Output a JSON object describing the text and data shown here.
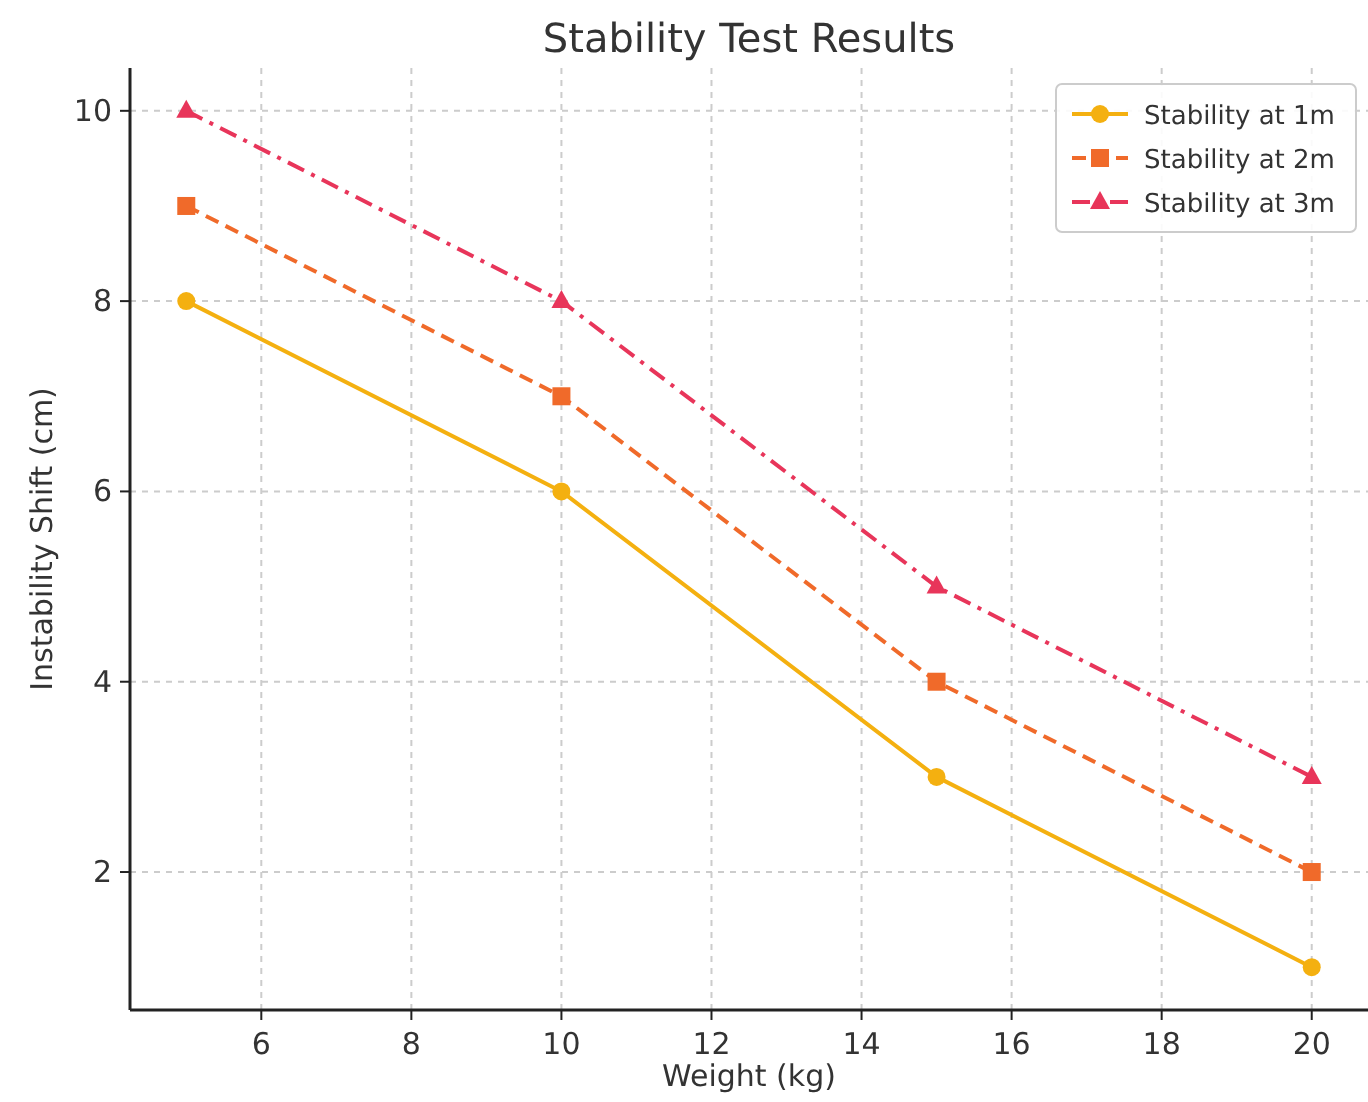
{
  "chart_data": {
    "type": "line",
    "title": "Stability Test Results",
    "xlabel": "Weight (kg)",
    "ylabel": "Instability Shift (cm)",
    "x": [
      5,
      10,
      15,
      20
    ],
    "series": [
      {
        "name": "Stability at 1m",
        "color": "#f4b010",
        "values": [
          8,
          6,
          3,
          1
        ],
        "marker": "circle",
        "line_style": "solid"
      },
      {
        "name": "Stability at 2m",
        "color": "#f06a2a",
        "values": [
          9,
          7,
          4,
          2
        ],
        "marker": "square",
        "line_style": "dashed"
      },
      {
        "name": "Stability at 3m",
        "color": "#e8355a",
        "values": [
          10,
          8,
          5,
          3
        ],
        "marker": "triangle",
        "line_style": "dashdot"
      }
    ],
    "xlim": [
      4.25,
      20.75
    ],
    "ylim": [
      0.55,
      10.45
    ],
    "xticks": [
      6,
      8,
      10,
      12,
      14,
      16,
      18,
      20
    ],
    "yticks": [
      2,
      4,
      6,
      8,
      10
    ],
    "grid": true,
    "legend": "top right"
  }
}
